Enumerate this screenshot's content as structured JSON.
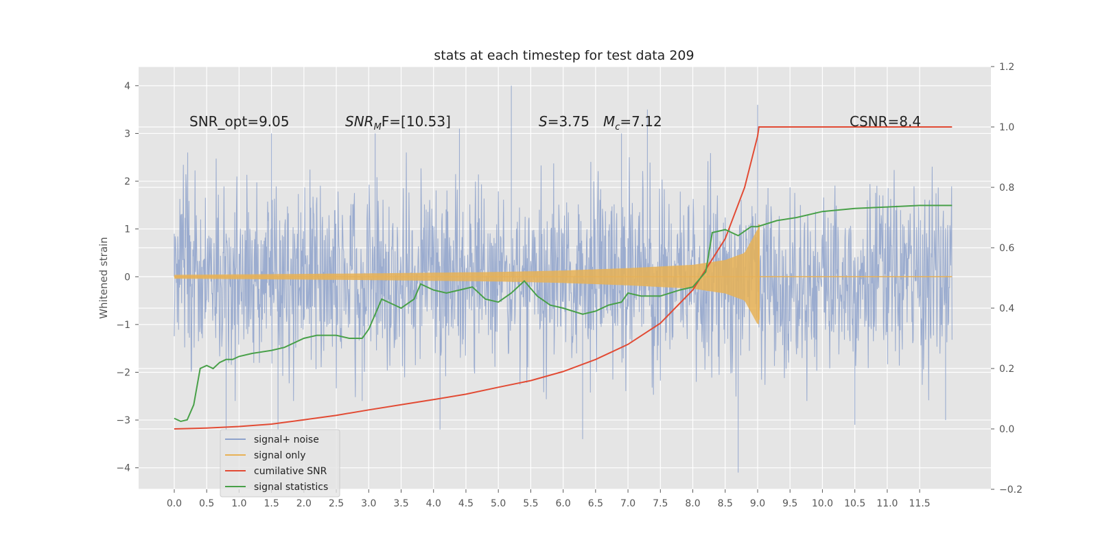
{
  "chart_data": {
    "type": "line",
    "title": "stats at each timestep for test data 209",
    "xlabel": "",
    "ylabel": "Whitened strain",
    "y2label": "",
    "xlim": [
      -0.55,
      12.6
    ],
    "ylim": [
      -4.45,
      4.4
    ],
    "y2lim": [
      -0.2,
      1.2
    ],
    "grid": true,
    "legend_position": "lower-left",
    "x_ticks": [
      "0.0",
      "0.5",
      "1.0",
      "1.5",
      "2.0",
      "2.5",
      "3.0",
      "3.5",
      "4.0",
      "4.5",
      "5.0",
      "5.5",
      "6.0",
      "6.5",
      "7.0",
      "7.5",
      "8.0",
      "8.5",
      "9.0",
      "9.5",
      "10.0",
      "10.5",
      "11.0",
      "11.5"
    ],
    "y_ticks": [
      "4",
      "3",
      "2",
      "1",
      "0",
      "−1",
      "−2",
      "−3",
      "−4"
    ],
    "y2_ticks": [
      "1.2",
      "1.0",
      "0.8",
      "0.6",
      "0.4",
      "0.2",
      "0.0",
      "−0.2"
    ],
    "annotations": [
      {
        "id": "snr_opt",
        "text": "SNR_opt=9.05",
        "x": 0.2,
        "y": 3.1
      },
      {
        "id": "snr_mf",
        "text": "SNR_MF=[10.53]",
        "main": "SNR",
        "sub": "M",
        "rest": "F=[10.53]",
        "x": 2.6,
        "y": 3.1
      },
      {
        "id": "s_val",
        "text": "S=3.75",
        "main": "S",
        "rest": "=3.75",
        "x": 5.6,
        "y": 3.1
      },
      {
        "id": "mc_val",
        "text": "Mc=7.12",
        "main": "M",
        "sub": "c",
        "rest": "=7.12",
        "x": 6.6,
        "y": 3.1
      },
      {
        "id": "csnr",
        "text": "CSNR=8.4",
        "x": 10.4,
        "y": 3.1
      }
    ],
    "series": [
      {
        "name": "signal+ noise",
        "color": "#8ea2cb",
        "axis": "left",
        "x_range": [
          0.0,
          12.0
        ],
        "amplitude_typical": 1.6,
        "spikes": [
          [
            0.0,
            0.9
          ],
          [
            0.8,
            -3.2
          ],
          [
            1.5,
            3.0
          ],
          [
            1.6,
            -3.2
          ],
          [
            2.9,
            -2.6
          ],
          [
            3.1,
            3.0
          ],
          [
            4.1,
            -3.2
          ],
          [
            4.4,
            3.1
          ],
          [
            5.2,
            4.0
          ],
          [
            6.0,
            0.9
          ],
          [
            6.3,
            -3.4
          ],
          [
            6.9,
            3.0
          ],
          [
            7.3,
            3.5
          ],
          [
            8.7,
            -4.1
          ],
          [
            9.0,
            3.6
          ],
          [
            10.5,
            -3.1
          ],
          [
            11.9,
            -3.0
          ]
        ]
      },
      {
        "name": "signal only",
        "color": "#e8b155",
        "axis": "left",
        "chirp_end": 9.02,
        "envelope": [
          [
            0.0,
            0.04
          ],
          [
            3.0,
            0.07
          ],
          [
            5.0,
            0.1
          ],
          [
            6.0,
            0.13
          ],
          [
            7.0,
            0.18
          ],
          [
            8.0,
            0.25
          ],
          [
            8.5,
            0.35
          ],
          [
            8.8,
            0.5
          ],
          [
            9.0,
            1.0
          ]
        ],
        "peak_negative": -0.9
      },
      {
        "name": "cumilative SNR",
        "color": "#e24a33",
        "axis": "right",
        "x": [
          0.0,
          0.5,
          1.0,
          1.5,
          2.0,
          2.5,
          3.0,
          3.5,
          4.0,
          4.5,
          5.0,
          5.5,
          6.0,
          6.5,
          7.0,
          7.5,
          8.0,
          8.5,
          8.8,
          9.0,
          9.02,
          12.0
        ],
        "values": [
          0.0,
          0.003,
          0.008,
          0.016,
          0.03,
          0.045,
          0.063,
          0.08,
          0.097,
          0.115,
          0.138,
          0.16,
          0.19,
          0.23,
          0.28,
          0.35,
          0.46,
          0.63,
          0.8,
          0.97,
          1.0,
          1.0
        ]
      },
      {
        "name": "signal statistics",
        "color": "#48a048",
        "axis": "right",
        "x": [
          0.0,
          0.1,
          0.2,
          0.3,
          0.4,
          0.5,
          0.6,
          0.7,
          0.8,
          0.9,
          1.0,
          1.2,
          1.5,
          1.7,
          2.0,
          2.2,
          2.5,
          2.7,
          2.9,
          3.0,
          3.2,
          3.4,
          3.5,
          3.7,
          3.8,
          4.0,
          4.2,
          4.4,
          4.6,
          4.8,
          5.0,
          5.2,
          5.4,
          5.6,
          5.8,
          6.0,
          6.3,
          6.5,
          6.7,
          6.9,
          7.0,
          7.2,
          7.5,
          7.8,
          8.0,
          8.2,
          8.3,
          8.5,
          8.7,
          8.9,
          9.0,
          9.3,
          9.6,
          10.0,
          10.5,
          11.0,
          11.5,
          12.0
        ],
        "values": [
          0.035,
          0.025,
          0.03,
          0.08,
          0.2,
          0.21,
          0.2,
          0.22,
          0.23,
          0.23,
          0.24,
          0.25,
          0.26,
          0.27,
          0.3,
          0.31,
          0.31,
          0.3,
          0.3,
          0.33,
          0.43,
          0.41,
          0.4,
          0.43,
          0.48,
          0.46,
          0.45,
          0.46,
          0.47,
          0.43,
          0.42,
          0.45,
          0.49,
          0.44,
          0.41,
          0.4,
          0.38,
          0.39,
          0.41,
          0.42,
          0.45,
          0.44,
          0.44,
          0.46,
          0.47,
          0.52,
          0.65,
          0.66,
          0.64,
          0.67,
          0.67,
          0.69,
          0.7,
          0.72,
          0.73,
          0.735,
          0.74,
          0.74
        ]
      }
    ]
  }
}
